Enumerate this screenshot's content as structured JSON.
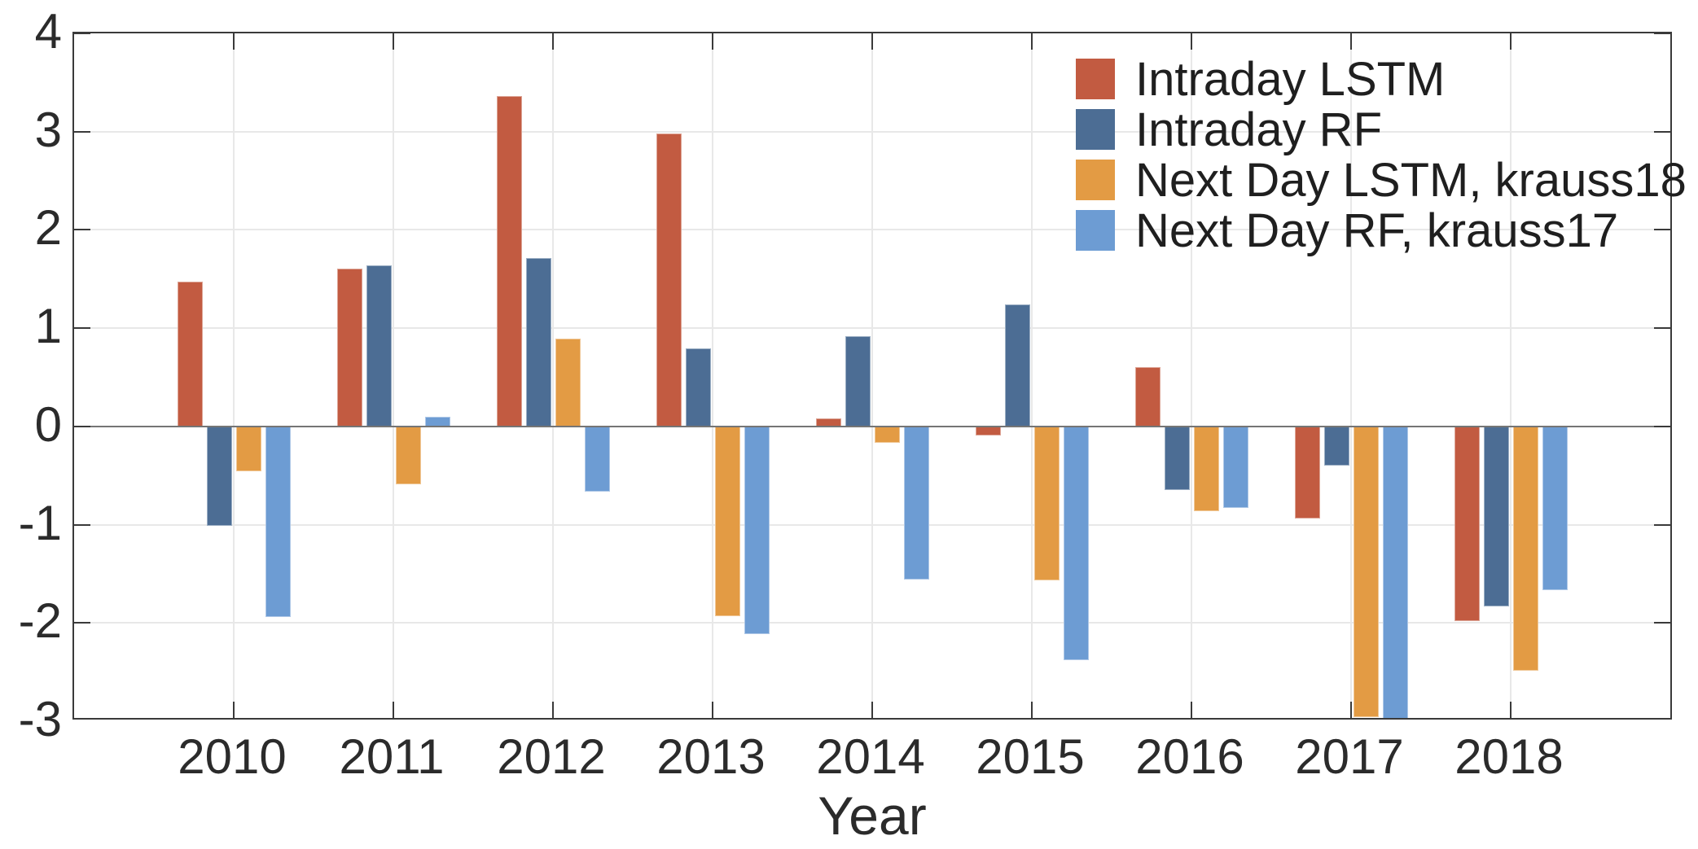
{
  "chart_data": {
    "type": "bar",
    "title": "",
    "xlabel": "Year",
    "ylabel": "",
    "categories": [
      "2010",
      "2011",
      "2012",
      "2013",
      "2014",
      "2015",
      "2016",
      "2017",
      "2018"
    ],
    "series": [
      {
        "name": "Intraday LSTM",
        "color": "#c25b41",
        "values": [
          1.47,
          1.61,
          3.36,
          2.98,
          0.08,
          -0.09,
          0.6,
          -0.94,
          -1.98
        ]
      },
      {
        "name": "Intraday RF",
        "color": "#4c6d94",
        "values": [
          -1.01,
          1.64,
          1.71,
          0.79,
          0.92,
          1.24,
          -0.65,
          -0.4,
          -1.83
        ]
      },
      {
        "name": "Next Day LSTM, krauss18",
        "color": "#e39b44",
        "values": [
          -0.46,
          -0.59,
          0.89,
          -1.93,
          -0.17,
          -1.57,
          -0.86,
          -2.96,
          -2.49
        ]
      },
      {
        "name": "Next Day RF, krauss17",
        "color": "#6d9cd3",
        "values": [
          -1.94,
          0.1,
          -0.66,
          -2.11,
          -1.56,
          -2.38,
          -0.83,
          -2.99,
          -1.67
        ]
      }
    ],
    "ylim": [
      -3,
      4
    ],
    "yticks": [
      4,
      3,
      2,
      1,
      0,
      -1,
      -2,
      -3
    ],
    "grid": true,
    "legend_position": "top-right",
    "style": {
      "axis_color": "#3a3a3a",
      "grid_color": "#e8e8e8",
      "zero_line_color": "#757575",
      "text_color": "#2b2b2b",
      "background": "#ffffff"
    }
  }
}
